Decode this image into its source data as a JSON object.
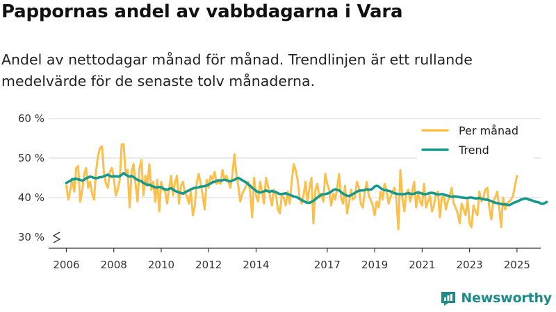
{
  "header": {
    "title": "Pappornas andel av vabbdagarna i Vara",
    "subtitle": "Andel av nettodagar månad för månad. Trendlinjen är ett rullande medelvärde för de senaste tolv månaderna."
  },
  "branding": {
    "name": "Newsworthy",
    "icon": "bar-chart-logo-icon"
  },
  "colors": {
    "monthly": "#fbc04b",
    "trend": "#14998c",
    "grid": "#dddddd",
    "axis": "#333333",
    "brand": "#1f8a8a"
  },
  "chart_data": {
    "type": "line",
    "title": "Pappornas andel av vabbdagarna i Vara",
    "xlabel": "",
    "ylabel": "",
    "x_start": 2006.0,
    "x_step": 0.08333,
    "xlim": [
      2005.4,
      2026.0
    ],
    "ylim": [
      30,
      60
    ],
    "y_broken_axis": true,
    "yticks": [
      30,
      40,
      50,
      60
    ],
    "ytick_labels": [
      "30 %",
      "40 %",
      "50 %",
      "60 %"
    ],
    "xticks": [
      2006,
      2008,
      2010,
      2012,
      2014,
      2017,
      2019,
      2021,
      2023,
      2025
    ],
    "xtick_labels": [
      "2006",
      "2008",
      "2010",
      "2012",
      "2014",
      "2017",
      "2019",
      "2021",
      "2023",
      "2025"
    ],
    "grid": true,
    "legend": {
      "placement": "top-right",
      "entries": [
        "Per månad",
        "Trend"
      ]
    },
    "series": [
      {
        "name": "Per månad",
        "color": "#fbc04b",
        "values": [
          43,
          39.5,
          42,
          44.5,
          41.5,
          47.5,
          48,
          39,
          41.5,
          46,
          47.5,
          42.5,
          44,
          41,
          39.5,
          46.5,
          50.5,
          52.5,
          53,
          46.5,
          43.5,
          42.5,
          46.5,
          47.5,
          45,
          40.5,
          42,
          44.5,
          53.5,
          53.5,
          46,
          47,
          37.5,
          46.5,
          48.5,
          43.5,
          39,
          47.5,
          49.5,
          40.5,
          45.5,
          43,
          48.5,
          42,
          44,
          39,
          44.5,
          36.5,
          44,
          42,
          41.5,
          38.5,
          42.5,
          45.5,
          40.5,
          44,
          45.5,
          38.5,
          43,
          44,
          41,
          40.5,
          38.5,
          41.5,
          35.5,
          38,
          44,
          46,
          43.5,
          40.5,
          37,
          44.5,
          42.5,
          45.5,
          44.5,
          46.5,
          43.5,
          44,
          43.5,
          47,
          44.5,
          45.5,
          44,
          42.5,
          45.5,
          51,
          46,
          43,
          39,
          41,
          42,
          43,
          44,
          41.5,
          35,
          45,
          40.5,
          39,
          44,
          41.5,
          38.5,
          45,
          43,
          40.5,
          38,
          42,
          41,
          37,
          36,
          40.5,
          40,
          38,
          41.5,
          38.5,
          44,
          48.5,
          47,
          44.5,
          40,
          38.5,
          40.5,
          44,
          39,
          42.5,
          45,
          33.5,
          42,
          43.5,
          40,
          41,
          39,
          46,
          43.5,
          42,
          38,
          41,
          39.5,
          42.5,
          46,
          40,
          38.5,
          43,
          36,
          38.5,
          42,
          39.5,
          40,
          44,
          42.5,
          38.5,
          37.5,
          41.5,
          44,
          40.5,
          39.5,
          38,
          35.5,
          39,
          37.5,
          41.5,
          39.5,
          43.5,
          42,
          38.5,
          40,
          41.5,
          42.5,
          39.5,
          32,
          47,
          40,
          36.5,
          41,
          42,
          39,
          41.5,
          44,
          37.5,
          41.5,
          39,
          38,
          43.5,
          37.5,
          39,
          40.5,
          36.5,
          38,
          41,
          41.5,
          35,
          40,
          40.5,
          37,
          39,
          40.5,
          42.5,
          38.5,
          37.5,
          36,
          33.5,
          38.5,
          37,
          35.5,
          39.5,
          33.5,
          32.5,
          38,
          36.5,
          35.5,
          41.5,
          39,
          40,
          42,
          42.5,
          37.5,
          34.5,
          39,
          40,
          41.5,
          37.5,
          32.5,
          40,
          37,
          38.5,
          39,
          39.5,
          40.5,
          43,
          45.5
        ]
      },
      {
        "name": "Trend",
        "color": "#14998c",
        "values": [
          43.7,
          44.0,
          44.2,
          44.7,
          44.6,
          44.8,
          44.6,
          44.5,
          44.3,
          44.5,
          44.9,
          45.1,
          45.3,
          45.2,
          45.0,
          44.9,
          45.0,
          45.2,
          45.2,
          45.4,
          45.6,
          45.8,
          45.5,
          45.3,
          45.4,
          45.4,
          45.3,
          45.4,
          45.8,
          46.2,
          45.8,
          45.5,
          45.3,
          45.5,
          45.2,
          44.8,
          44.5,
          44.3,
          44.1,
          43.7,
          43.5,
          43.2,
          43.3,
          43.0,
          42.8,
          42.6,
          42.6,
          42.7,
          42.6,
          42.3,
          42.1,
          42.0,
          42.2,
          42.4,
          42.0,
          41.7,
          41.5,
          41.3,
          41.2,
          41.0,
          41.3,
          41.6,
          41.8,
          42.1,
          42.3,
          42.5,
          42.5,
          42.6,
          42.8,
          42.8,
          42.9,
          43.1,
          43.3,
          43.6,
          43.9,
          44.0,
          44.2,
          44.4,
          44.3,
          44.4,
          44.5,
          44.4,
          44.2,
          44.1,
          44.3,
          44.5,
          44.8,
          45.0,
          44.7,
          44.4,
          44.1,
          43.8,
          43.4,
          43.0,
          42.5,
          42.1,
          41.7,
          41.4,
          41.3,
          41.4,
          41.6,
          41.8,
          41.6,
          41.5,
          41.7,
          41.5,
          41.4,
          41.1,
          40.9,
          40.9,
          41.0,
          41.1,
          40.9,
          40.7,
          40.5,
          40.3,
          40.2,
          40.0,
          39.7,
          39.4,
          39.1,
          38.9,
          38.7,
          38.7,
          38.9,
          39.2,
          39.6,
          40.0,
          40.4,
          40.7,
          40.8,
          40.9,
          41.0,
          41.2,
          41.5,
          41.9,
          42.1,
          42.0,
          41.8,
          41.4,
          41.0,
          40.7,
          40.5,
          40.4,
          40.6,
          40.9,
          41.2,
          41.5,
          41.7,
          41.8,
          41.8,
          41.9,
          42.1,
          42.0,
          42.0,
          42.3,
          42.8,
          43.0,
          42.8,
          42.4,
          42.1,
          41.9,
          41.8,
          41.7,
          41.6,
          41.3,
          41.1,
          41.0,
          40.9,
          40.9,
          40.8,
          40.9,
          41.0,
          41.1,
          41.0,
          40.9,
          41.0,
          41.2,
          41.3,
          41.2,
          41.0,
          40.9,
          40.9,
          41.0,
          41.2,
          41.2,
          41.1,
          40.9,
          40.8,
          40.8,
          40.9,
          40.8,
          40.6,
          40.5,
          40.3,
          40.2,
          40.3,
          40.3,
          40.2,
          40.1,
          40.0,
          40.0,
          39.9,
          39.9,
          40.0,
          40.0,
          39.9,
          39.8,
          39.8,
          39.9,
          39.7,
          39.6,
          39.5,
          39.5,
          39.3,
          39.1,
          38.9,
          38.7,
          38.6,
          38.5,
          38.4,
          38.3,
          38.3,
          38.2,
          38.1,
          38.3,
          38.6,
          38.8,
          39.0,
          39.2,
          39.5,
          39.6,
          39.8,
          39.7,
          39.5,
          39.4,
          39.2,
          39.0,
          38.9,
          38.8,
          38.5,
          38.4,
          38.6,
          38.9
        ]
      }
    ]
  }
}
